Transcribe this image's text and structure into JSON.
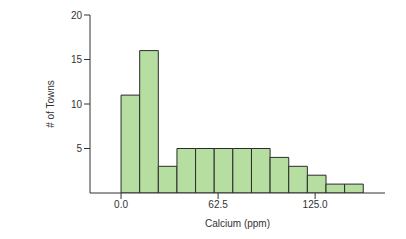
{
  "chart_data": {
    "type": "histogram",
    "bins": [
      0,
      12,
      24,
      36,
      48,
      60,
      72,
      84,
      96,
      108,
      120,
      132,
      144,
      156
    ],
    "values": [
      11,
      16,
      3,
      5,
      5,
      5,
      5,
      5,
      4,
      3,
      2,
      1,
      1
    ],
    "color": "#b5dea0",
    "xlabel": "Calcium (ppm)",
    "ylabel": "# of Towns",
    "xlim": [
      -20,
      170
    ],
    "xticks": [
      {
        "value": 0,
        "label": "0.0"
      },
      {
        "value": 62.5,
        "label": "62.5"
      },
      {
        "value": 125,
        "label": "125.0"
      }
    ],
    "ylim": [
      0,
      20
    ],
    "yticks": [
      5,
      10,
      15,
      20
    ],
    "grid": false
  }
}
